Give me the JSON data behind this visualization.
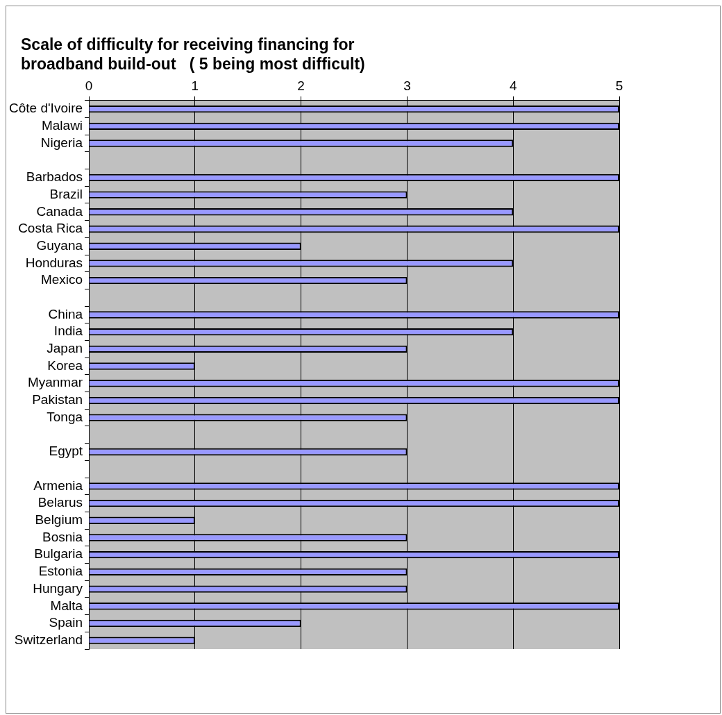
{
  "chart_data": {
    "type": "bar",
    "orientation": "horizontal",
    "title": "Scale of difficulty for receiving financing for broadband build-out   ( 5 being most difficult)",
    "categories": [
      "Côte d'Ivoire",
      "Malawi",
      "Nigeria",
      null,
      "Barbados",
      "Brazil",
      "Canada",
      "Costa Rica",
      "Guyana",
      "Honduras",
      "Mexico",
      null,
      "China",
      "India",
      "Japan",
      "Korea",
      "Myanmar",
      "Pakistan",
      "Tonga",
      null,
      "Egypt",
      null,
      "Armenia",
      "Belarus",
      "Belgium",
      "Bosnia",
      "Bulgaria",
      "Estonia",
      "Hungary",
      "Malta",
      "Spain",
      "Switzerland"
    ],
    "values": [
      5,
      5,
      4,
      null,
      5,
      3,
      4,
      5,
      2,
      4,
      3,
      null,
      5,
      4,
      3,
      1,
      5,
      5,
      3,
      null,
      3,
      null,
      5,
      5,
      1,
      3,
      5,
      3,
      3,
      5,
      2,
      1
    ],
    "color": "#9999ff",
    "xlim": [
      0,
      5
    ],
    "xticks": [
      0,
      1,
      2,
      3,
      4,
      5
    ],
    "grid": "x",
    "legend": false
  }
}
